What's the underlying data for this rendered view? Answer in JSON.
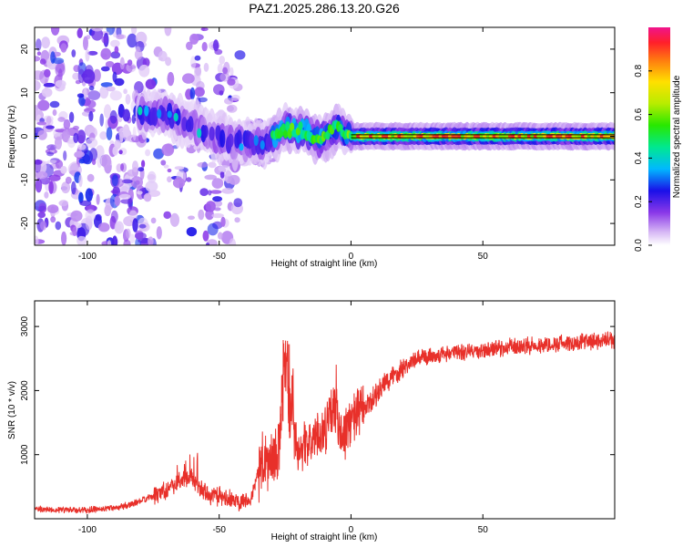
{
  "title": "PAZ1.2025.286.13.20.G26",
  "chart_data": [
    {
      "type": "heatmap",
      "name": "spectrogram",
      "xlabel": "Height of straight line (km)",
      "ylabel": "Frequency (Hz)",
      "xlim": [
        -120,
        100
      ],
      "ylim": [
        -25,
        25
      ],
      "xticks": [
        -100,
        -50,
        0,
        50
      ],
      "yticks": [
        -20,
        -10,
        0,
        10,
        20
      ],
      "colorbar": {
        "label": "Normalized spectral amplitude",
        "range": [
          0,
          1
        ],
        "ticks": [
          0.0,
          0.2,
          0.4,
          0.6,
          0.8
        ],
        "tick_labels": [
          "0.0",
          "0.2",
          "0.4",
          "0.6",
          "0.8"
        ]
      },
      "ridge_frequency": [
        {
          "x": -78,
          "y": 5
        },
        {
          "x": -70,
          "y": 5
        },
        {
          "x": -62,
          "y": 3
        },
        {
          "x": -55,
          "y": 1
        },
        {
          "x": -48,
          "y": -1
        },
        {
          "x": -40,
          "y": -1.5
        },
        {
          "x": -32,
          "y": -1.5
        },
        {
          "x": -25,
          "y": 1.5
        },
        {
          "x": -18,
          "y": 1.5
        },
        {
          "x": -12,
          "y": -0.5
        },
        {
          "x": -5,
          "y": 2
        },
        {
          "x": 0,
          "y": 0
        },
        {
          "x": 100,
          "y": 0
        }
      ]
    },
    {
      "type": "line",
      "name": "snr",
      "xlabel": "Height of straight line (km)",
      "ylabel": "SNR (10 * v/v)",
      "xlim": [
        -120,
        100
      ],
      "ylim": [
        0,
        3400
      ],
      "xticks": [
        -100,
        -50,
        0,
        50
      ],
      "yticks": [
        1000,
        2000,
        3000
      ],
      "series": [
        {
          "name": "SNR",
          "color": "#e8302a",
          "x": [
            -120,
            -100,
            -85,
            -75,
            -68,
            -62,
            -55,
            -45,
            -38,
            -34,
            -30,
            -27,
            -25,
            -23,
            -20,
            -15,
            -10,
            -6,
            -3,
            0,
            5,
            10,
            15,
            20,
            25,
            30,
            40,
            50,
            60,
            70,
            80,
            90,
            100
          ],
          "y": [
            150,
            130,
            200,
            350,
            520,
            650,
            400,
            280,
            310,
            900,
            850,
            1150,
            2400,
            1550,
            1100,
            1200,
            1400,
            1700,
            1250,
            1550,
            1700,
            1950,
            2200,
            2380,
            2480,
            2540,
            2600,
            2620,
            2680,
            2700,
            2740,
            2760,
            2780
          ]
        }
      ]
    }
  ]
}
